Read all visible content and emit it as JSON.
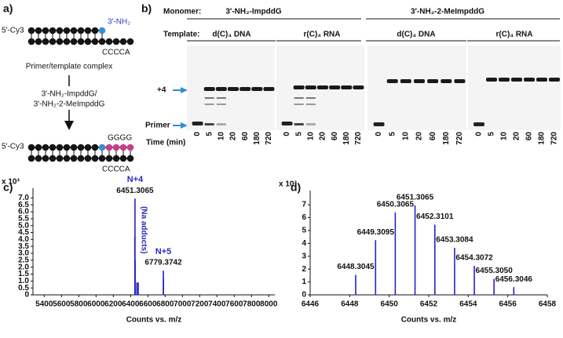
{
  "panel_a": {
    "label": "a)",
    "primer_end": "5′-Cy3",
    "amine": "3′-NH₂",
    "template_seq": "CCCCA",
    "complex_caption": "Primer/template complex",
    "reagents": [
      "3′-NH₂-ImpddG/",
      "3′-NH₂-2-MeImpddG"
    ],
    "product_end": "5′-Cy3",
    "added": "GGGG",
    "product_template_seq": "CCCCA"
  },
  "panel_b": {
    "label": "b)",
    "monomer_heading": "Monomer:",
    "template_heading": "Template:",
    "monomers": [
      "3′-NH₂-ImpddG",
      "3′-NH₂-2-MeImpddG"
    ],
    "templates": [
      "d(C)₄ DNA",
      "r(C)₄ RNA",
      "d(C)₄ DNA",
      "r(C)₄ RNA"
    ],
    "band_labels": [
      "+4",
      "Primer"
    ],
    "time_heading": "Time (min)",
    "times": [
      [
        0,
        5,
        10,
        20,
        60,
        180,
        720
      ],
      [
        0,
        5,
        10,
        20,
        60,
        180,
        720
      ],
      [
        0,
        5,
        10,
        20,
        60,
        180,
        720
      ],
      [
        0,
        5,
        10,
        20,
        60,
        180,
        720
      ]
    ]
  },
  "chart_data": [
    {
      "type": "bar",
      "label": "c)",
      "multiplier": "x 10³",
      "xlabel": "Counts vs. m/z",
      "x": [
        6449,
        6451.3065,
        6453,
        6473,
        6489,
        6779.3742,
        6781
      ],
      "values": [
        4.2,
        6.95,
        2.5,
        0.9,
        0.9,
        1.75,
        1.2
      ],
      "peak_labels": [
        null,
        "6451.3065",
        null,
        null,
        null,
        "6779.3742",
        null
      ],
      "annotations": [
        "N+4",
        "(Na adducts)",
        "N+5"
      ],
      "color": "#2424c8",
      "xlim": [
        5270,
        8070
      ],
      "xticks": [
        5400,
        5600,
        5800,
        6000,
        6200,
        6400,
        6600,
        6800,
        7000,
        7200,
        7400,
        7600,
        7800,
        8000
      ],
      "ylim": [
        0,
        7.7
      ],
      "yticks": [
        0,
        0.5,
        {
          "value": 1,
          "label": "1.0"
        },
        1.5,
        {
          "value": 2,
          "label": "2.0"
        },
        2.5,
        {
          "value": 3,
          "label": "3.0"
        },
        3.5,
        {
          "value": 4,
          "label": "4.0"
        },
        4.5,
        {
          "value": 5,
          "label": "5.0"
        },
        5.5,
        {
          "value": 6,
          "label": "6.0"
        },
        6.5,
        {
          "value": 7,
          "label": "7.0"
        }
      ]
    },
    {
      "type": "bar",
      "label": "d)",
      "multiplier": "x 10³",
      "xlabel": "Counts vs. m/z",
      "x": [
        6448.3045,
        6449.3095,
        6450.3065,
        6451.3065,
        6452.3101,
        6453.3084,
        6454.3072,
        6455.305,
        6456.3046
      ],
      "values": [
        1.55,
        4.25,
        6.4,
        6.95,
        5.45,
        3.65,
        2.25,
        1.25,
        0.6
      ],
      "peak_labels": [
        "6448.3045",
        "6449.3095",
        "6450.3065",
        "6451.3065",
        "6452.3101",
        "6453.3084",
        "6454.3072",
        "6455.3050",
        "6456.3046"
      ],
      "color": "#2424c8",
      "xlim": [
        6446,
        6458
      ],
      "xticks": [
        6446,
        6448,
        6450,
        6452,
        6454,
        6456,
        6458
      ],
      "ylim": [
        0,
        8.1
      ],
      "yticks": [
        0,
        1,
        2,
        3,
        4,
        5,
        6,
        7
      ]
    }
  ]
}
